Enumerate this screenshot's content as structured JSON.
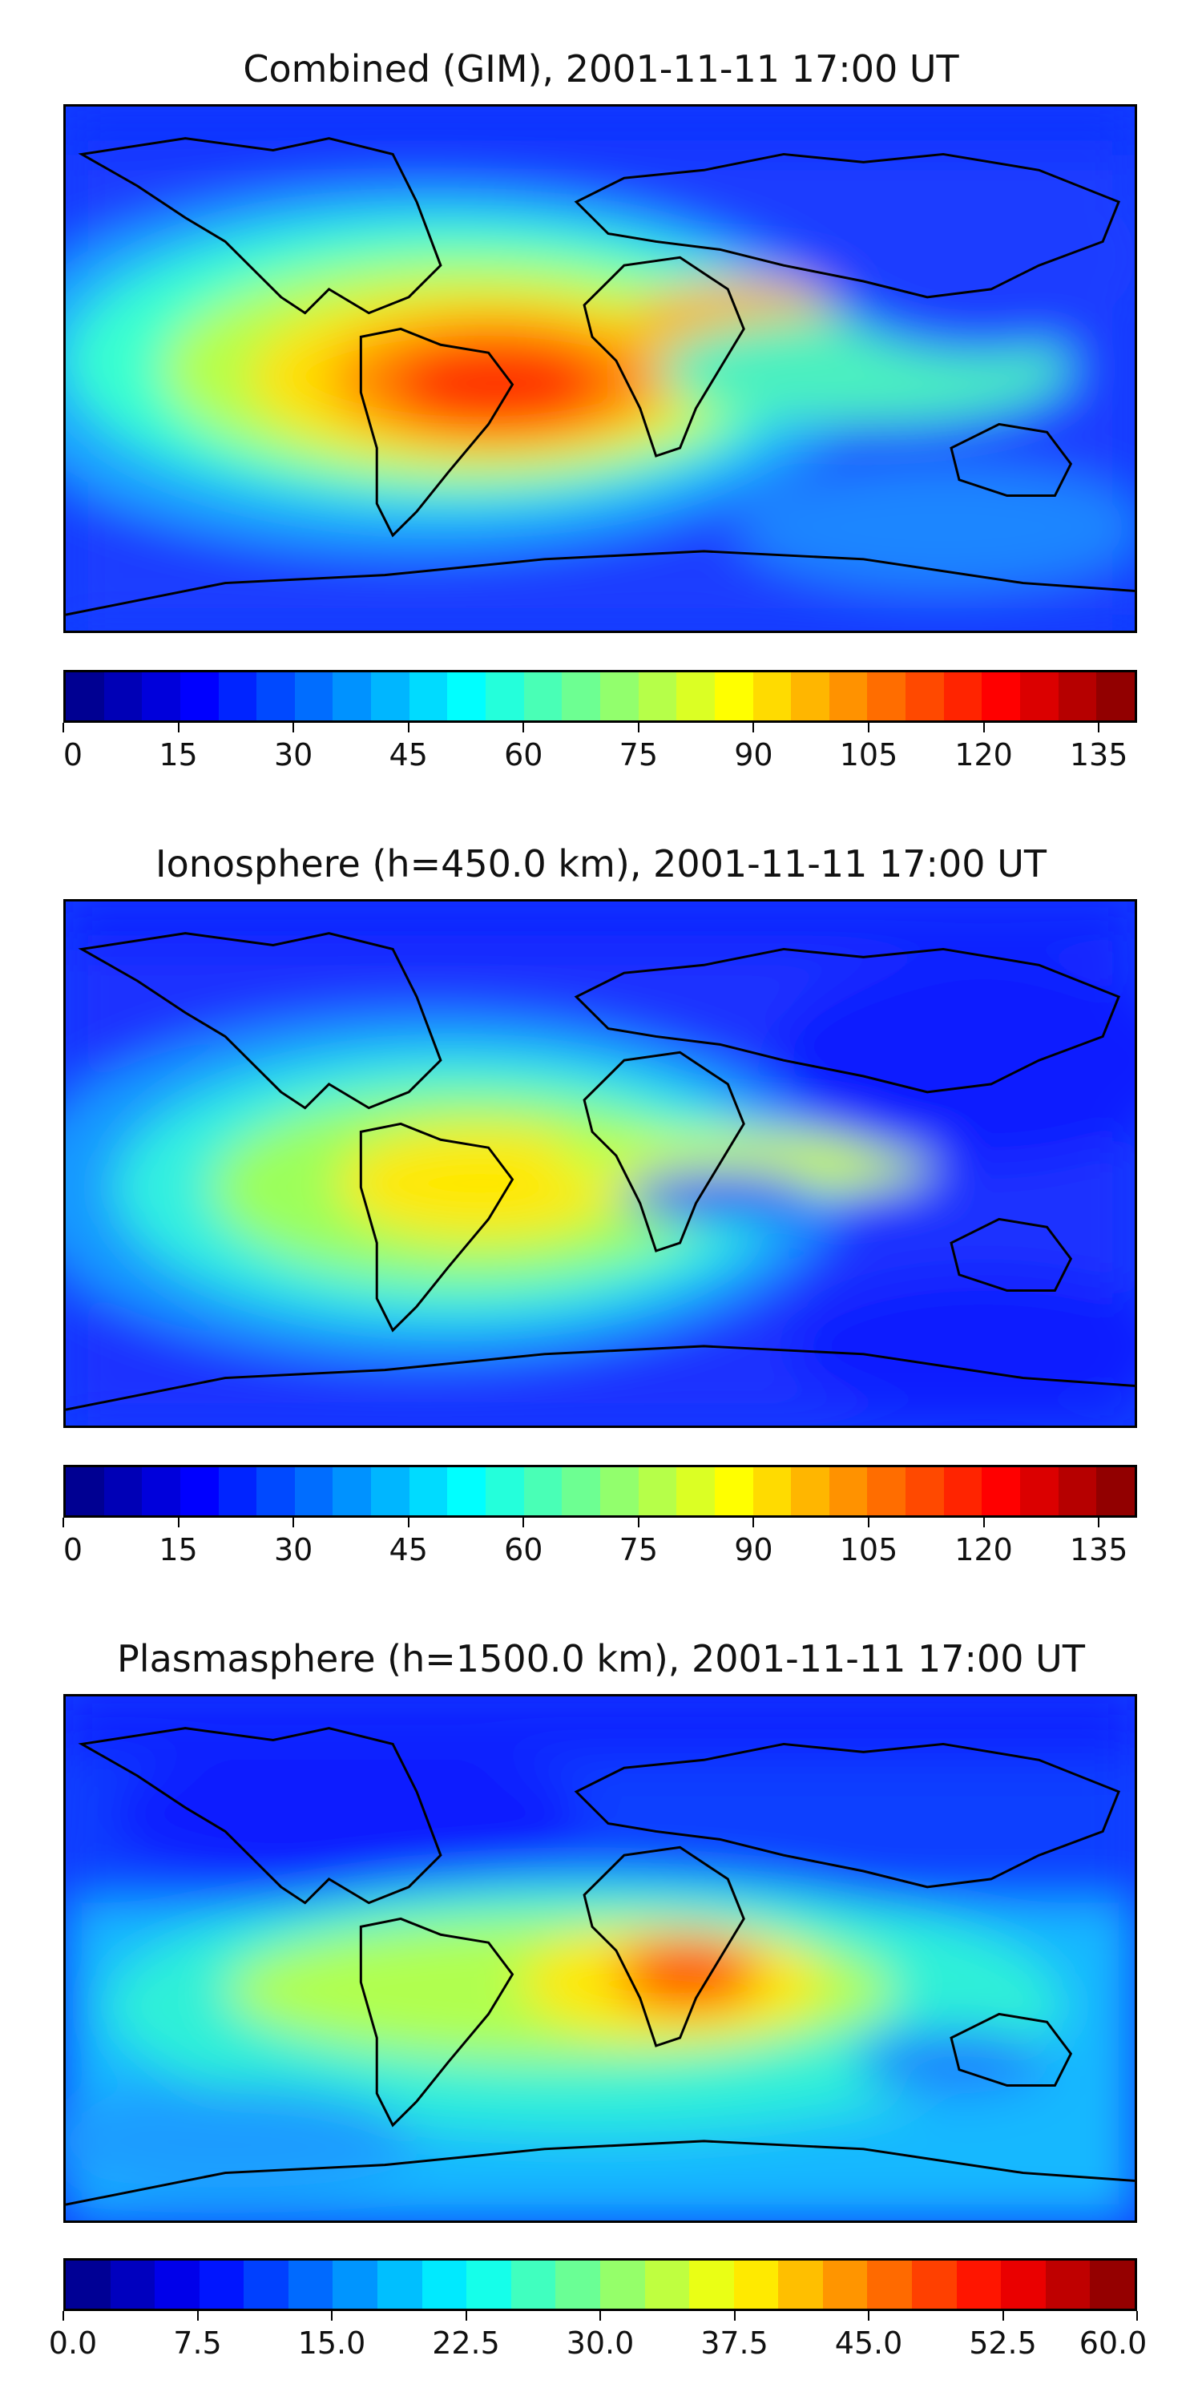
{
  "panels": [
    {
      "title": "Combined (GIM), 2001-11-11 17:00 UT",
      "colorbar": {
        "vmin": 0,
        "vmax": 140,
        "levels": 28,
        "ticks": [
          "0",
          "15",
          "30",
          "45",
          "60",
          "75",
          "90",
          "105",
          "120",
          "135"
        ],
        "tick_values": [
          0,
          15,
          30,
          45,
          60,
          75,
          90,
          105,
          120,
          135
        ]
      }
    },
    {
      "title": "Ionosphere  (h=450.0 km), 2001-11-11 17:00 UT",
      "colorbar": {
        "vmin": 0,
        "vmax": 140,
        "levels": 28,
        "ticks": [
          "0",
          "15",
          "30",
          "45",
          "60",
          "75",
          "90",
          "105",
          "120",
          "135"
        ],
        "tick_values": [
          0,
          15,
          30,
          45,
          60,
          75,
          90,
          105,
          120,
          135
        ]
      }
    },
    {
      "title": "Plasmasphere (h=1500.0 km), 2001-11-11 17:00 UT",
      "colorbar": {
        "vmin": 0,
        "vmax": 60,
        "levels": 24,
        "ticks": [
          "0.0",
          "7.5",
          "15.0",
          "22.5",
          "30.0",
          "37.5",
          "45.0",
          "52.5",
          "60.0"
        ],
        "tick_values": [
          0,
          7.5,
          15,
          22.5,
          30,
          37.5,
          45,
          52.5,
          60
        ]
      }
    }
  ],
  "colormap": "jet"
}
